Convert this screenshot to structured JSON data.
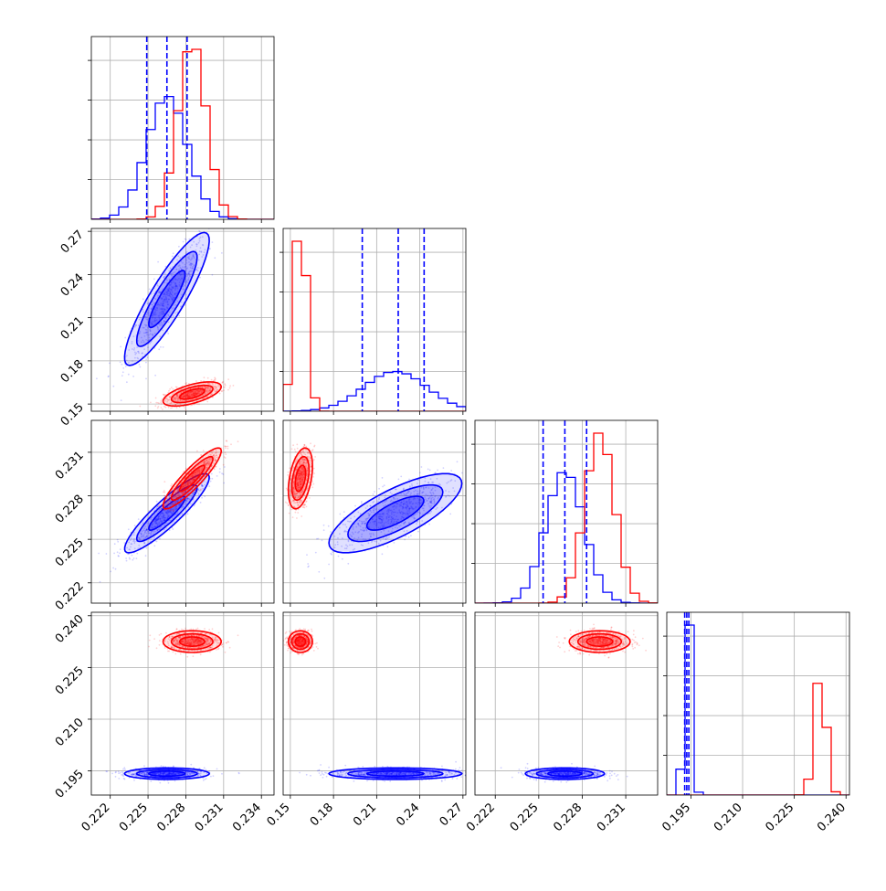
{
  "chart_data": {
    "type": "corner",
    "title": "",
    "colors": {
      "series_a": "#0000ff",
      "series_b": "#ff0000",
      "grid": "#b0b0b0"
    },
    "grid": true,
    "legend": "none",
    "series": [
      {
        "color": "#0000ff",
        "means": [
          0.2265,
          0.223,
          0.2268,
          0.1942
        ],
        "sds": [
          0.0016,
          0.022,
          0.0013,
          0.0008
        ]
      },
      {
        "color": "#ff0000",
        "means": [
          0.2285,
          0.157,
          0.2292,
          0.2325
        ],
        "sds": [
          0.0011,
          0.004,
          0.001,
          0.0015
        ]
      }
    ],
    "quantile_lines": [
      [
        0.2249,
        0.2265,
        0.2281
      ],
      [
        0.2,
        0.225,
        0.243
      ],
      [
        0.2253,
        0.2268,
        0.2283
      ],
      [
        0.1932,
        0.1938,
        0.1944
      ]
    ],
    "correlations": [
      {
        "i": 1,
        "j": 0,
        "a": 0.88,
        "b": 0.6
      },
      {
        "i": 2,
        "j": 0,
        "a": 0.9,
        "b": 0.9
      },
      {
        "i": 2,
        "j": 1,
        "a": 0.75,
        "b": 0.4
      },
      {
        "i": 3,
        "j": 0,
        "a": 0.0,
        "b": 0.0
      },
      {
        "i": 3,
        "j": 1,
        "a": 0.0,
        "b": 0.0
      },
      {
        "i": 3,
        "j": 2,
        "a": 0.0,
        "b": 0.0
      }
    ],
    "axes": [
      {
        "range": [
          0.2205,
          0.235
        ],
        "ticks": [
          "0.222",
          "0.225",
          "0.228",
          "0.231",
          "0.234"
        ],
        "tick_values": [
          0.222,
          0.225,
          0.228,
          0.231,
          0.234
        ]
      },
      {
        "range": [
          0.145,
          0.272
        ],
        "ticks": [
          "0.15",
          "0.18",
          "0.21",
          "0.24",
          "0.27"
        ],
        "tick_values": [
          0.15,
          0.18,
          0.21,
          0.24,
          0.27
        ]
      },
      {
        "range": [
          0.2206,
          0.2332
        ],
        "ticks": [
          "0.222",
          "0.225",
          "0.228",
          "0.231"
        ],
        "tick_values": [
          0.222,
          0.225,
          0.228,
          0.231
        ]
      },
      {
        "range": [
          0.188,
          0.241
        ],
        "ticks": [
          "0.195",
          "0.210",
          "0.225",
          "0.240"
        ],
        "tick_values": [
          0.195,
          0.21,
          0.225,
          0.24
        ]
      }
    ]
  }
}
